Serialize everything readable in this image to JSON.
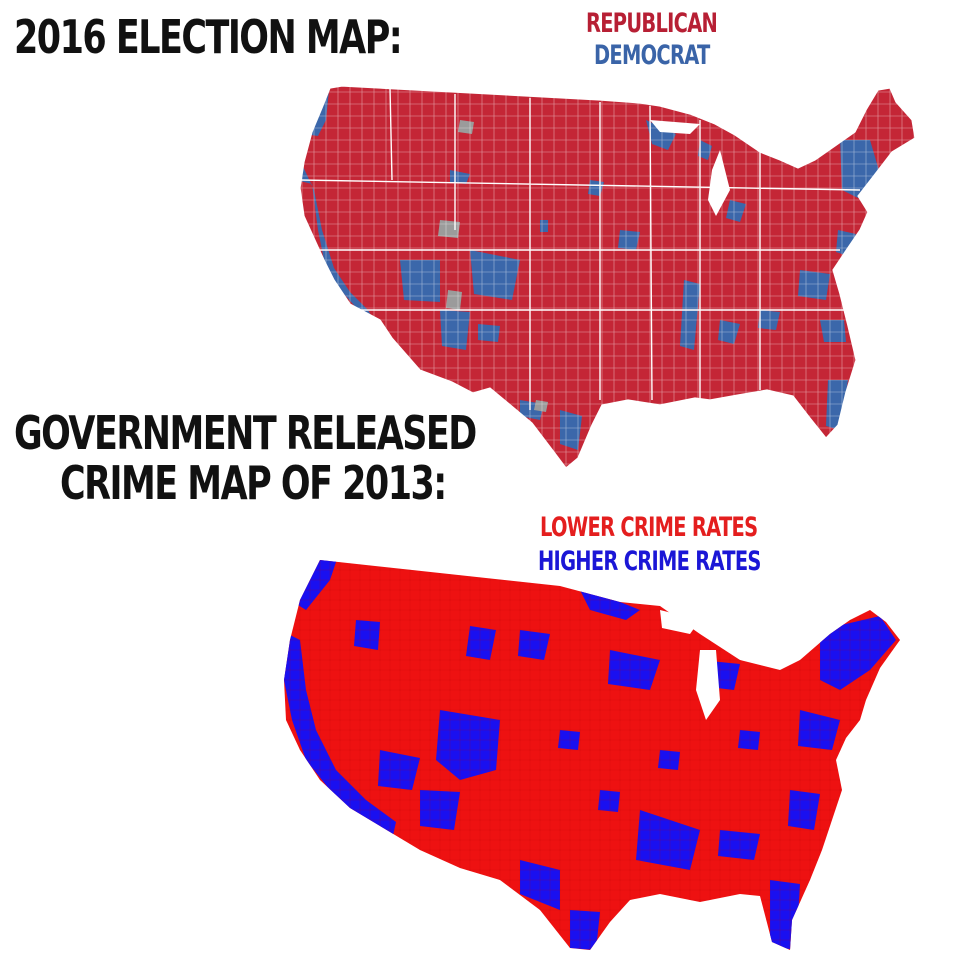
{
  "election": {
    "title": "2016 ELECTION MAP:",
    "legend": [
      {
        "label": "REPUBLICAN",
        "color": "#b71f34"
      },
      {
        "label": "DEMOCRAT",
        "color": "#3a64a8"
      }
    ],
    "colors": {
      "republican": "#c42636",
      "democrat": "#3b67aa",
      "no_data": "#9b9b9b",
      "borders": "#ffffff"
    }
  },
  "crime": {
    "title_line1": "GOVERNMENT RELEASED",
    "title_line2": "CRIME MAP OF 2013:",
    "legend": [
      {
        "label": "LOWER CRIME RATES",
        "color": "#e41e1e"
      },
      {
        "label": "HIGHER CRIME RATES",
        "color": "#1b16d6"
      }
    ],
    "colors": {
      "lower": "#ee1111",
      "higher": "#1a10f0",
      "county_lines": "#b80000"
    }
  }
}
